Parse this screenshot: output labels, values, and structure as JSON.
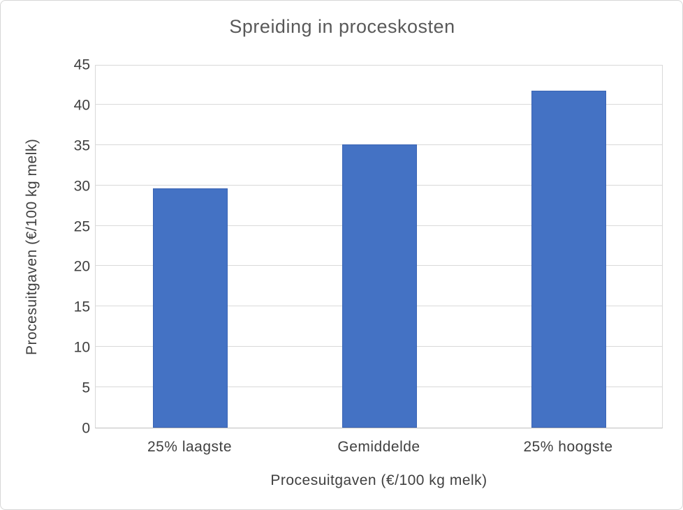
{
  "chart_data": {
    "type": "bar",
    "title": "Spreiding in proceskosten",
    "categories": [
      "25% laagste",
      "Gemiddelde",
      "25% hoogste"
    ],
    "values": [
      29.6,
      35.1,
      41.7
    ],
    "xlabel": "Procesuitgaven (€/100 kg melk)",
    "ylabel": "Procesuitgaven (€/100 kg melk)",
    "ylim": [
      0,
      45
    ],
    "yticks": [
      0,
      5,
      10,
      15,
      20,
      25,
      30,
      35,
      40,
      45
    ],
    "grid": true,
    "legend_position": "none",
    "bar_color": "#4472C4",
    "bar_edge_color": "#3A64B4",
    "gridline_color": "#D9D9D9",
    "axis_line_color": "#BFBFBF",
    "title_color": "#595959",
    "axis_text_color": "#404040"
  }
}
